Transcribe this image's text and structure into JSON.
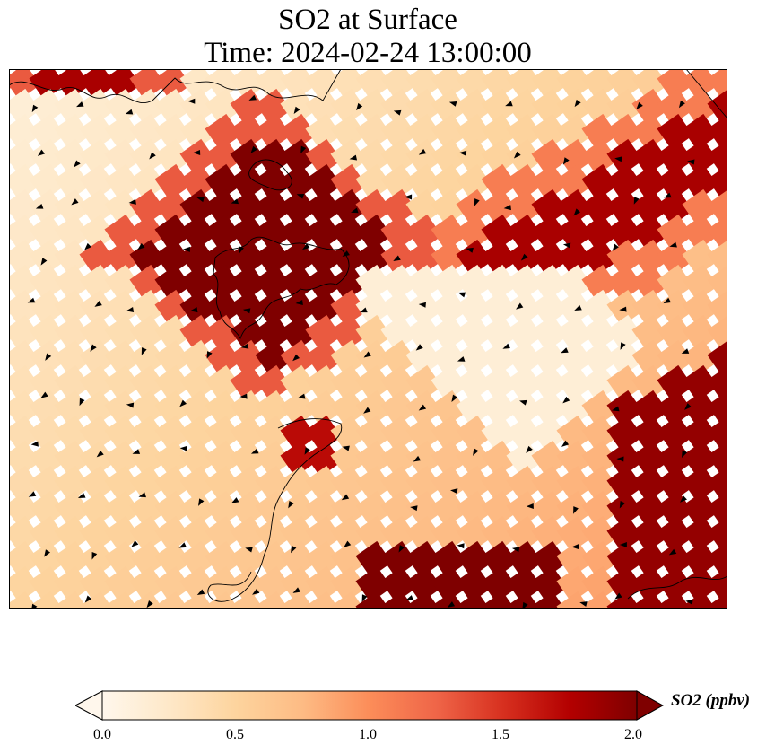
{
  "chart_data": {
    "type": "heatmap",
    "title": "SO2 at Surface",
    "subtitle": "Time: 2024-02-24 13:00:00",
    "colorbar": {
      "label": "SO2 (ppbv)",
      "vmin": 0.0,
      "vmax": 2.0,
      "ticks": [
        0.0,
        0.5,
        1.0,
        1.5,
        2.0
      ],
      "tick_labels": [
        "0.0",
        "0.5",
        "1.0",
        "1.5",
        "2.0"
      ],
      "extend": "both",
      "colormap": "OrRd"
    },
    "grid": false,
    "overlays": [
      "coastlines",
      "wind-vectors"
    ],
    "regions_ppbv": [
      {
        "area": "upper-left block",
        "value": 2.0
      },
      {
        "area": "upper-right band",
        "value": 1.8
      },
      {
        "area": "lower-right corner",
        "value": 2.0
      },
      {
        "area": "lower-center strip",
        "value": 2.0
      },
      {
        "area": "left background",
        "value": 0.15
      }
    ]
  }
}
